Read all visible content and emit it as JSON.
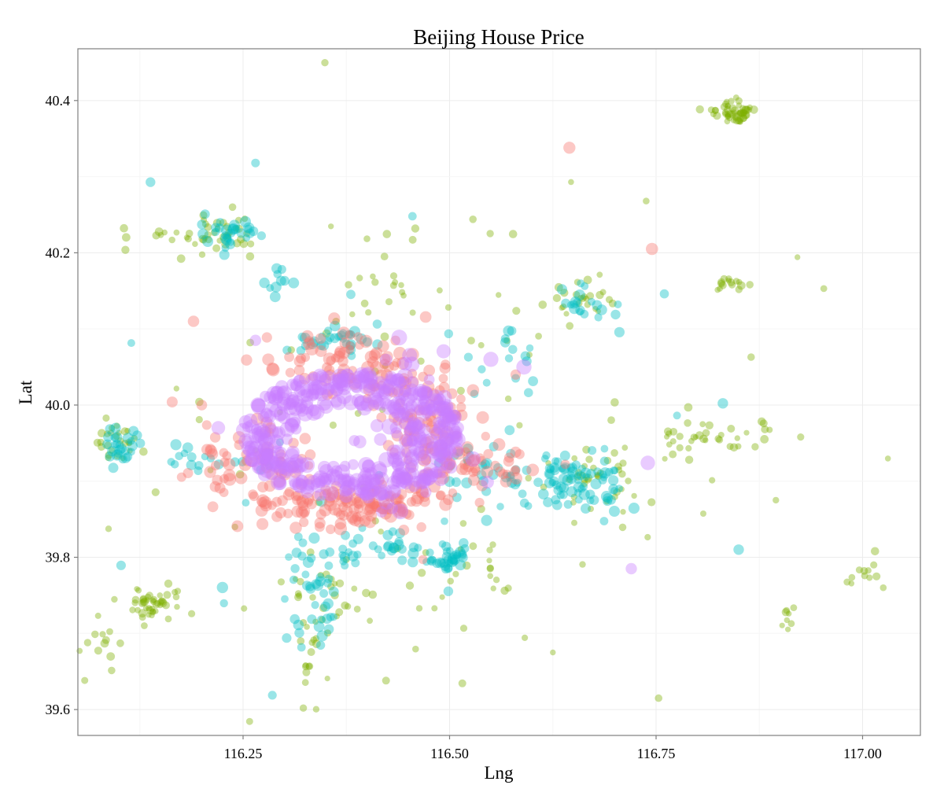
{
  "chart_data": {
    "type": "scatter",
    "title": "Beijing House Price",
    "xlabel": "Lng",
    "ylabel": "Lat",
    "xlim": [
      116.05,
      117.07
    ],
    "ylim": [
      39.566,
      40.468
    ],
    "x_ticks": [
      116.25,
      116.5,
      116.75,
      117.0
    ],
    "x_tick_labels": [
      "116.25",
      "116.50",
      "116.75",
      "117.00"
    ],
    "y_ticks": [
      39.6,
      39.8,
      40.0,
      40.2,
      40.4
    ],
    "y_tick_labels": [
      "39.6",
      "39.8",
      "40.0",
      "40.2",
      "40.4"
    ],
    "grid": true,
    "legend": "none",
    "point_opacity": 0.4,
    "colors": {
      "purple": "#c77cff",
      "red": "#f8766d",
      "teal": "#00bfc4",
      "green": "#7cae00"
    },
    "point_sizes_by_group": {
      "purple": 8.5,
      "red": 7,
      "teal": 6,
      "green": 4.5
    },
    "clusters": [
      {
        "group": "purple",
        "n": 420,
        "x": 116.38,
        "y": 39.96,
        "sx": 0.07,
        "sy": 0.045,
        "ring": 0.085
      },
      {
        "group": "purple",
        "n": 70,
        "x": 116.45,
        "y": 39.98,
        "sx": 0.04,
        "sy": 0.05
      },
      {
        "group": "red",
        "n": 130,
        "x": 116.38,
        "y": 39.87,
        "sx": 0.06,
        "sy": 0.015
      },
      {
        "group": "red",
        "n": 90,
        "x": 116.47,
        "y": 39.97,
        "sx": 0.03,
        "sy": 0.05
      },
      {
        "group": "red",
        "n": 60,
        "x": 116.26,
        "y": 39.92,
        "sx": 0.04,
        "sy": 0.025
      },
      {
        "group": "red",
        "n": 60,
        "x": 116.36,
        "y": 40.06,
        "sx": 0.05,
        "sy": 0.02
      },
      {
        "group": "red",
        "n": 40,
        "x": 116.53,
        "y": 39.92,
        "sx": 0.04,
        "sy": 0.015
      },
      {
        "group": "red",
        "n": 25,
        "x": 116.42,
        "y": 40.04,
        "sx": 0.03,
        "sy": 0.02
      },
      {
        "group": "teal",
        "n": 70,
        "x": 116.66,
        "y": 39.9,
        "sx": 0.025,
        "sy": 0.02
      },
      {
        "group": "teal",
        "n": 45,
        "x": 116.34,
        "y": 39.76,
        "sx": 0.015,
        "sy": 0.04
      },
      {
        "group": "teal",
        "n": 40,
        "x": 116.56,
        "y": 39.91,
        "sx": 0.04,
        "sy": 0.02
      },
      {
        "group": "teal",
        "n": 35,
        "x": 116.44,
        "y": 39.81,
        "sx": 0.04,
        "sy": 0.01
      },
      {
        "group": "teal",
        "n": 30,
        "x": 116.5,
        "y": 39.8,
        "sx": 0.01,
        "sy": 0.01
      },
      {
        "group": "teal",
        "n": 30,
        "x": 116.23,
        "y": 40.225,
        "sx": 0.02,
        "sy": 0.01
      },
      {
        "group": "teal",
        "n": 30,
        "x": 116.36,
        "y": 40.085,
        "sx": 0.03,
        "sy": 0.008
      },
      {
        "group": "teal",
        "n": 25,
        "x": 116.1,
        "y": 39.945,
        "sx": 0.01,
        "sy": 0.015
      },
      {
        "group": "teal",
        "n": 20,
        "x": 116.67,
        "y": 40.13,
        "sx": 0.02,
        "sy": 0.015
      },
      {
        "group": "teal",
        "n": 20,
        "x": 116.2,
        "y": 39.93,
        "sx": 0.04,
        "sy": 0.01
      },
      {
        "group": "teal",
        "n": 15,
        "x": 116.58,
        "y": 40.06,
        "sx": 0.02,
        "sy": 0.04
      },
      {
        "group": "teal",
        "n": 10,
        "x": 116.29,
        "y": 40.16,
        "sx": 0.01,
        "sy": 0.01
      },
      {
        "group": "teal",
        "n": 25,
        "x": 116.4,
        "y": 39.96,
        "sx": 0.2,
        "sy": 0.15
      },
      {
        "group": "green",
        "n": 55,
        "x": 116.845,
        "y": 40.385,
        "sx": 0.012,
        "sy": 0.008
      },
      {
        "group": "green",
        "n": 45,
        "x": 116.14,
        "y": 39.74,
        "sx": 0.015,
        "sy": 0.01
      },
      {
        "group": "green",
        "n": 40,
        "x": 116.68,
        "y": 39.91,
        "sx": 0.025,
        "sy": 0.025
      },
      {
        "group": "green",
        "n": 35,
        "x": 116.82,
        "y": 39.96,
        "sx": 0.04,
        "sy": 0.015
      },
      {
        "group": "green",
        "n": 30,
        "x": 116.23,
        "y": 40.225,
        "sx": 0.02,
        "sy": 0.012
      },
      {
        "group": "green",
        "n": 25,
        "x": 116.1,
        "y": 39.95,
        "sx": 0.015,
        "sy": 0.015
      },
      {
        "group": "green",
        "n": 25,
        "x": 116.66,
        "y": 40.14,
        "sx": 0.025,
        "sy": 0.015
      },
      {
        "group": "green",
        "n": 25,
        "x": 116.35,
        "y": 39.74,
        "sx": 0.02,
        "sy": 0.03
      },
      {
        "group": "green",
        "n": 20,
        "x": 116.42,
        "y": 40.15,
        "sx": 0.03,
        "sy": 0.04
      },
      {
        "group": "green",
        "n": 20,
        "x": 116.53,
        "y": 39.78,
        "sx": 0.04,
        "sy": 0.03
      },
      {
        "group": "green",
        "n": 15,
        "x": 116.84,
        "y": 40.16,
        "sx": 0.01,
        "sy": 0.005
      },
      {
        "group": "green",
        "n": 15,
        "x": 116.16,
        "y": 40.22,
        "sx": 0.03,
        "sy": 0.02
      },
      {
        "group": "green",
        "n": 15,
        "x": 116.08,
        "y": 39.69,
        "sx": 0.02,
        "sy": 0.03
      },
      {
        "group": "green",
        "n": 12,
        "x": 116.33,
        "y": 39.64,
        "sx": 0.01,
        "sy": 0.03
      },
      {
        "group": "green",
        "n": 10,
        "x": 117.0,
        "y": 39.78,
        "sx": 0.015,
        "sy": 0.01
      },
      {
        "group": "green",
        "n": 8,
        "x": 116.91,
        "y": 39.72,
        "sx": 0.005,
        "sy": 0.008
      },
      {
        "group": "green",
        "n": 80,
        "x": 116.45,
        "y": 39.95,
        "sx": 0.22,
        "sy": 0.17
      }
    ],
    "points": [
      {
        "group": "purple",
        "x": 116.72,
        "y": 39.785
      },
      {
        "group": "purple",
        "x": 116.74,
        "y": 39.924
      },
      {
        "group": "purple",
        "x": 116.265,
        "y": 40.085
      },
      {
        "group": "purple",
        "x": 116.22,
        "y": 39.97
      },
      {
        "group": "purple",
        "x": 116.55,
        "y": 40.06
      },
      {
        "group": "purple",
        "x": 116.59,
        "y": 40.05
      },
      {
        "group": "red",
        "x": 116.645,
        "y": 40.338
      },
      {
        "group": "red",
        "x": 116.745,
        "y": 40.205
      },
      {
        "group": "red",
        "x": 116.2,
        "y": 40.0
      },
      {
        "group": "red",
        "x": 116.19,
        "y": 40.11
      },
      {
        "group": "red",
        "x": 116.58,
        "y": 40.04
      },
      {
        "group": "teal",
        "x": 116.265,
        "y": 40.318
      },
      {
        "group": "teal",
        "x": 116.455,
        "y": 40.248
      },
      {
        "group": "teal",
        "x": 116.85,
        "y": 39.81
      },
      {
        "group": "teal",
        "x": 116.76,
        "y": 40.146
      },
      {
        "group": "teal",
        "x": 116.69,
        "y": 39.88
      },
      {
        "group": "green",
        "x": 116.953,
        "y": 40.153
      },
      {
        "group": "green",
        "x": 116.647,
        "y": 40.293
      },
      {
        "group": "green",
        "x": 116.738,
        "y": 40.268
      },
      {
        "group": "green",
        "x": 116.625,
        "y": 39.675
      },
      {
        "group": "green",
        "x": 116.753,
        "y": 39.615
      },
      {
        "group": "green",
        "x": 116.423,
        "y": 39.638
      },
      {
        "group": "green",
        "x": 117.025,
        "y": 39.76
      },
      {
        "group": "green",
        "x": 117.015,
        "y": 39.808
      },
      {
        "group": "green",
        "x": 116.895,
        "y": 39.875
      },
      {
        "group": "green",
        "x": 116.865,
        "y": 40.063
      },
      {
        "group": "green",
        "x": 116.925,
        "y": 39.958
      },
      {
        "group": "green",
        "x": 116.323,
        "y": 39.602
      }
    ]
  }
}
